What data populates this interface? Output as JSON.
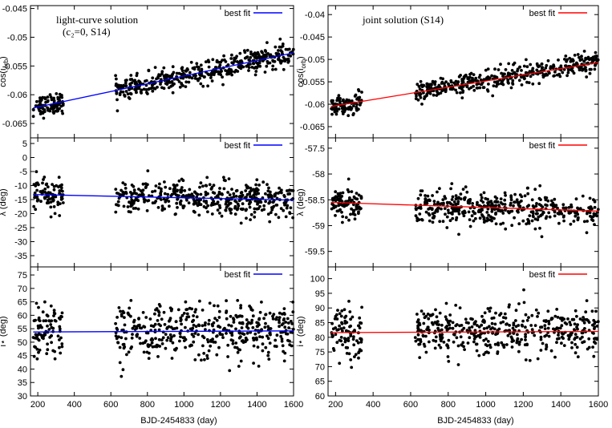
{
  "figure": {
    "left_title_line1": "light-curve solution",
    "left_title_line2": "(c₂=0, S14)",
    "right_title": "joint solution (S14)",
    "xlabel": "BJD-2454833 (day)",
    "legend_label": "best fit",
    "colors": {
      "left_fit": "#0000ff",
      "right_fit": "#ff0000",
      "points": "#000000"
    }
  },
  "chart_data": [
    {
      "type": "scatter",
      "column": "left",
      "row": 0,
      "ylabel": "cos(i_orb)",
      "xlim": [
        160,
        1600
      ],
      "ylim": [
        -0.0675,
        -0.0445
      ],
      "xticks": [
        200,
        400,
        600,
        800,
        1000,
        1200,
        1400,
        1600
      ],
      "yticks": [
        -0.065,
        -0.06,
        -0.055,
        -0.05,
        -0.045
      ],
      "ytick_labels": [
        "-0.065",
        "-0.06",
        "-0.055",
        "-0.05",
        "-0.045"
      ],
      "fit": {
        "x": [
          175,
          1600
        ],
        "y": [
          -0.0623,
          -0.0527
        ]
      },
      "segments": [
        {
          "x0": 175,
          "x1": 340,
          "n": 90,
          "y_start": -0.0623,
          "y_end": -0.0612,
          "spread": 0.0009
        },
        {
          "x0": 625,
          "x1": 1600,
          "n": 430,
          "y_start": -0.0594,
          "y_end": -0.0527,
          "spread": 0.001
        }
      ]
    },
    {
      "type": "scatter",
      "column": "left",
      "row": 1,
      "ylabel": "λ (deg)",
      "xlim": [
        160,
        1600
      ],
      "ylim": [
        -39,
        7
      ],
      "xticks": [
        200,
        400,
        600,
        800,
        1000,
        1200,
        1400,
        1600
      ],
      "yticks": [
        -35,
        -30,
        -25,
        -20,
        -15,
        -10,
        -5,
        0,
        5
      ],
      "ytick_labels": [
        "-35",
        "-30",
        "-25",
        "-20",
        "-15",
        "-10",
        "-5",
        "0",
        "5"
      ],
      "fit": {
        "x": [
          175,
          1600
        ],
        "y": [
          -13.2,
          -15.2
        ]
      },
      "segments": [
        {
          "x0": 175,
          "x1": 340,
          "n": 90,
          "y_start": -13.3,
          "y_end": -13.6,
          "spread": 2.7
        },
        {
          "x0": 625,
          "x1": 1600,
          "n": 430,
          "y_start": -14.0,
          "y_end": -15.2,
          "spread": 3.0
        }
      ]
    },
    {
      "type": "scatter",
      "column": "left",
      "row": 2,
      "ylabel": "i⋆ (deg)",
      "xlim": [
        160,
        1600
      ],
      "ylim": [
        30,
        78
      ],
      "xticks": [
        200,
        400,
        600,
        800,
        1000,
        1200,
        1400,
        1600
      ],
      "yticks": [
        30,
        35,
        40,
        45,
        50,
        55,
        60,
        65,
        70,
        75
      ],
      "ytick_labels": [
        "30",
        "35",
        "40",
        "45",
        "50",
        "55",
        "60",
        "65",
        "70",
        "75"
      ],
      "fit": {
        "x": [
          175,
          1600
        ],
        "y": [
          53.8,
          54.2
        ]
      },
      "segments": [
        {
          "x0": 175,
          "x1": 340,
          "n": 90,
          "y_start": 53.8,
          "y_end": 53.9,
          "spread": 5.0
        },
        {
          "x0": 625,
          "x1": 1600,
          "n": 430,
          "y_start": 53.9,
          "y_end": 54.2,
          "spread": 5.0
        }
      ]
    },
    {
      "type": "scatter",
      "column": "right",
      "row": 0,
      "ylabel": "cos(i_orb)",
      "xlim": [
        160,
        1600
      ],
      "ylim": [
        -0.0675,
        -0.038
      ],
      "xticks": [
        200,
        400,
        600,
        800,
        1000,
        1200,
        1400,
        1600
      ],
      "yticks": [
        -0.065,
        -0.06,
        -0.055,
        -0.05,
        -0.045,
        -0.04
      ],
      "ytick_labels": [
        "-0.065",
        "-0.06",
        "-0.055",
        "-0.05",
        "-0.045",
        "-0.04"
      ],
      "fit": {
        "x": [
          175,
          1600
        ],
        "y": [
          -0.0605,
          -0.0507
        ]
      },
      "segments": [
        {
          "x0": 175,
          "x1": 340,
          "n": 90,
          "y_start": -0.0605,
          "y_end": -0.0595,
          "spread": 0.0011
        },
        {
          "x0": 625,
          "x1": 1600,
          "n": 430,
          "y_start": -0.0573,
          "y_end": -0.0507,
          "spread": 0.0012
        }
      ]
    },
    {
      "type": "scatter",
      "column": "right",
      "row": 1,
      "ylabel": "λ (deg)",
      "xlim": [
        160,
        1600
      ],
      "ylim": [
        -59.8,
        -57.3
      ],
      "xticks": [
        200,
        400,
        600,
        800,
        1000,
        1200,
        1400,
        1600
      ],
      "yticks": [
        -59.5,
        -59,
        -58.5,
        -58,
        -57.5
      ],
      "ytick_labels": [
        "-59.5",
        "-59",
        "-58.5",
        "-58",
        "-57.5"
      ],
      "fit": {
        "x": [
          175,
          1600
        ],
        "y": [
          -58.55,
          -58.72
        ]
      },
      "segments": [
        {
          "x0": 175,
          "x1": 340,
          "n": 90,
          "y_start": -58.6,
          "y_end": -58.6,
          "spread": 0.16
        },
        {
          "x0": 625,
          "x1": 1600,
          "n": 430,
          "y_start": -58.6,
          "y_end": -58.72,
          "spread": 0.16
        }
      ]
    },
    {
      "type": "scatter",
      "column": "right",
      "row": 2,
      "ylabel": "i⋆ (deg)",
      "xlim": [
        160,
        1600
      ],
      "ylim": [
        60,
        104
      ],
      "xticks": [
        200,
        400,
        600,
        800,
        1000,
        1200,
        1400,
        1600
      ],
      "yticks": [
        60,
        65,
        70,
        75,
        80,
        85,
        90,
        95,
        100
      ],
      "ytick_labels": [
        "60",
        "65",
        "70",
        "75",
        "80",
        "85",
        "90",
        "95",
        "100"
      ],
      "fit": {
        "x": [
          175,
          1600
        ],
        "y": [
          81.6,
          82.0
        ]
      },
      "segments": [
        {
          "x0": 175,
          "x1": 340,
          "n": 90,
          "y_start": 81.7,
          "y_end": 81.8,
          "spread": 4.0
        },
        {
          "x0": 625,
          "x1": 1600,
          "n": 430,
          "y_start": 81.8,
          "y_end": 82.0,
          "spread": 4.0
        }
      ]
    }
  ]
}
